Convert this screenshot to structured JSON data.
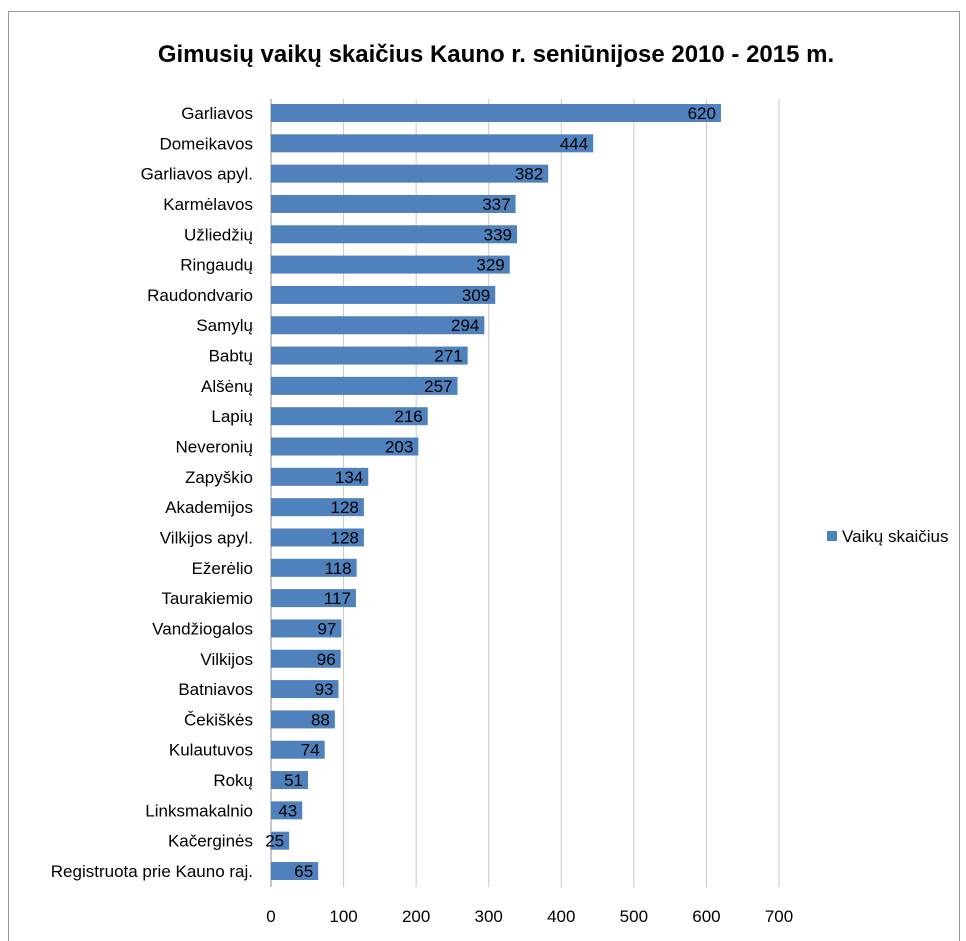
{
  "chart_data": {
    "type": "bar",
    "orientation": "horizontal",
    "title": "Gimusių vaikų skaičius Kauno r. seniūnijose 2010 - 2015 m.",
    "xlabel": "",
    "ylabel": "",
    "xlim": [
      0,
      700
    ],
    "x_ticks": [
      0,
      100,
      200,
      300,
      400,
      500,
      600,
      700
    ],
    "grid": true,
    "legend_position": "right",
    "bar_color": "#4f81bd",
    "categories": [
      "Garliavos",
      "Domeikavos",
      "Garliavos apyl.",
      "Karmėlavos",
      "Užliedžių",
      "Ringaudų",
      "Raudondvario",
      "Samylų",
      "Babtų",
      "Alšėnų",
      "Lapių",
      "Neveronių",
      "Zapyškio",
      "Akademijos",
      "Vilkijos apyl.",
      "Ežerėlio",
      "Taurakiemio",
      "Vandžiogalos",
      "Vilkijos",
      "Batniavos",
      "Čekiškės",
      "Kulautuvos",
      "Rokų",
      "Linksmakalnio",
      "Kačerginės",
      "Registruota prie Kauno raj."
    ],
    "series": [
      {
        "name": "Vaikų skaičius",
        "values": [
          620,
          444,
          382,
          337,
          339,
          329,
          309,
          294,
          271,
          257,
          216,
          203,
          134,
          128,
          128,
          118,
          117,
          97,
          96,
          93,
          88,
          74,
          51,
          43,
          25,
          65
        ]
      }
    ]
  }
}
